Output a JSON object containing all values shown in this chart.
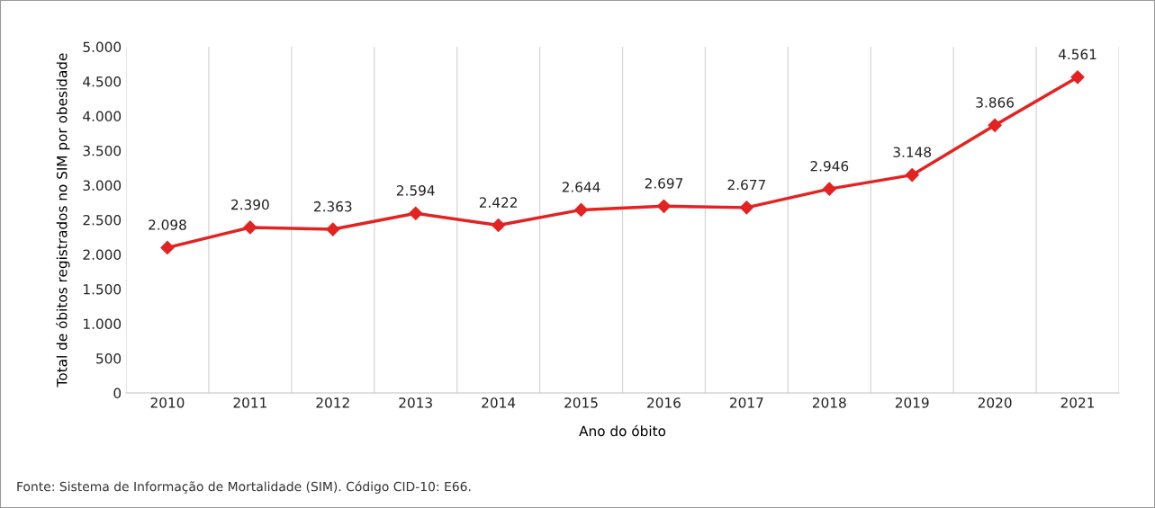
{
  "chart_data": {
    "type": "line",
    "xlabel": "Ano do óbito",
    "ylabel": "Total de óbitos registrados no SIM por obesidade",
    "categories": [
      "2010",
      "2011",
      "2012",
      "2013",
      "2014",
      "2015",
      "2016",
      "2017",
      "2018",
      "2019",
      "2020",
      "2021"
    ],
    "series": [
      {
        "color": "#e32222",
        "values": [
          2098,
          2390,
          2363,
          2594,
          2422,
          2644,
          2697,
          2677,
          2946,
          3148,
          3866,
          4561
        ],
        "value_labels": [
          "2.098",
          "2.390",
          "2.363",
          "2.594",
          "2.422",
          "2.644",
          "2.697",
          "2.677",
          "2.946",
          "3.148",
          "3.866",
          "4.561"
        ]
      }
    ],
    "ylim": [
      0,
      5000
    ],
    "yticks": [
      {
        "value": 0,
        "label": "0"
      },
      {
        "value": 500,
        "label": "500"
      },
      {
        "value": 1000,
        "label": "1.000"
      },
      {
        "value": 1500,
        "label": "1.500"
      },
      {
        "value": 2000,
        "label": "2.000"
      },
      {
        "value": 2500,
        "label": "2.500"
      },
      {
        "value": 3000,
        "label": "3.000"
      },
      {
        "value": 3500,
        "label": "3.500"
      },
      {
        "value": 4000,
        "label": "4.000"
      },
      {
        "value": 4500,
        "label": "4.500"
      },
      {
        "value": 5000,
        "label": "5.000"
      }
    ],
    "grid": "x",
    "legend": false,
    "marker": "diamond",
    "line_style": "solid",
    "annotations": [
      "Fonte: Sistema de Informação de Mortalidade (SIM). Código CID-10: E66."
    ]
  }
}
